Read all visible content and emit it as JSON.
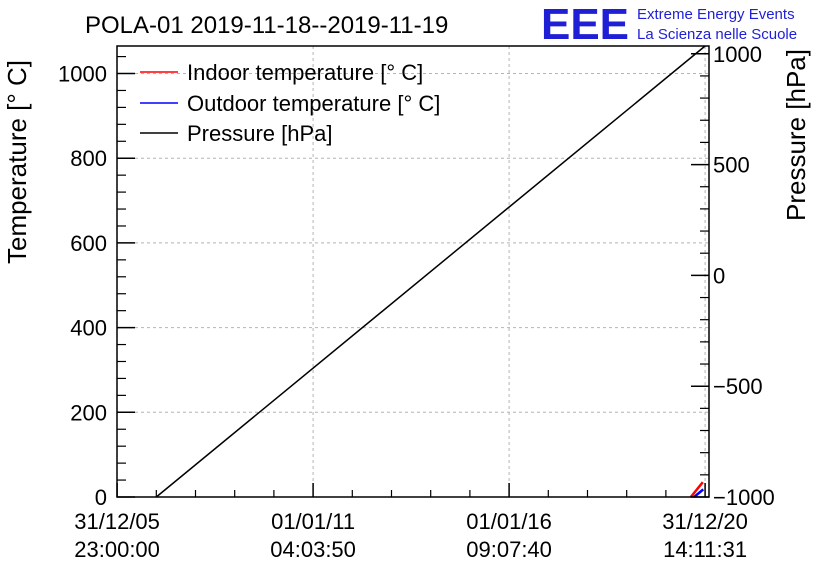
{
  "header": {
    "title": "POLA-01 2019-11-18--2019-11-19",
    "logo_text": "EEE",
    "logo_line1": "Extreme Energy Events",
    "logo_line2": "La Scienza nelle Scuole"
  },
  "colors": {
    "indoor": "#ff0000",
    "outdoor": "#0000ff",
    "pressure": "#000000",
    "brand": "#1f1fd6",
    "grid": "#b4b4b4"
  },
  "chart_data": {
    "type": "line",
    "title": "POLA-01 2019-11-18--2019-11-19",
    "ylabel": "Temperature [° C]",
    "y2label": "Pressure [hPa]",
    "ylim": [
      0,
      1065
    ],
    "y2lim": [
      -1000,
      1035
    ],
    "yticks": [
      0,
      200,
      400,
      600,
      800,
      1000
    ],
    "y2ticks": [
      -1000,
      -500,
      0,
      500,
      1000
    ],
    "y2ticklabels": [
      "−1000",
      "−500",
      "0",
      "500",
      "1000"
    ],
    "x_axis": {
      "type": "time",
      "range": [
        "2005-12-31 01:00:00",
        "2021-02-06 00:00:00"
      ],
      "ticks": [
        {
          "date": "2005-12-31 23:00:00",
          "line1": "31/12/05",
          "line2": "23:00:00"
        },
        {
          "date": "2011-01-01 04:03:50",
          "line1": "01/01/11",
          "line2": "04:03:50"
        },
        {
          "date": "2016-01-01 09:07:40",
          "line1": "01/01/16",
          "line2": "09:07:40"
        },
        {
          "date": "2020-12-31 14:11:31",
          "line1": "31/12/20",
          "line2": "14:11:31"
        }
      ]
    },
    "grid": true,
    "legend_position": "top-left",
    "series": [
      {
        "name": "Indoor temperature [° C]",
        "axis": "left",
        "color": "#ff0000",
        "x": [
          "2020-08-20 00:00:00",
          "2020-12-10 00:00:00"
        ],
        "y": [
          0,
          35
        ]
      },
      {
        "name": "Outdoor temperature [° C]",
        "axis": "left",
        "color": "#0000ff",
        "x": [
          "2020-09-20 00:00:00",
          "2020-12-15 00:00:00"
        ],
        "y": [
          0,
          18
        ]
      },
      {
        "name": "Pressure [hPa]",
        "axis": "right",
        "color": "#000000",
        "x": [
          "2007-01-01 00:00:00",
          "2020-12-31 14:11:31"
        ],
        "y": [
          -1000,
          1035
        ]
      }
    ]
  }
}
